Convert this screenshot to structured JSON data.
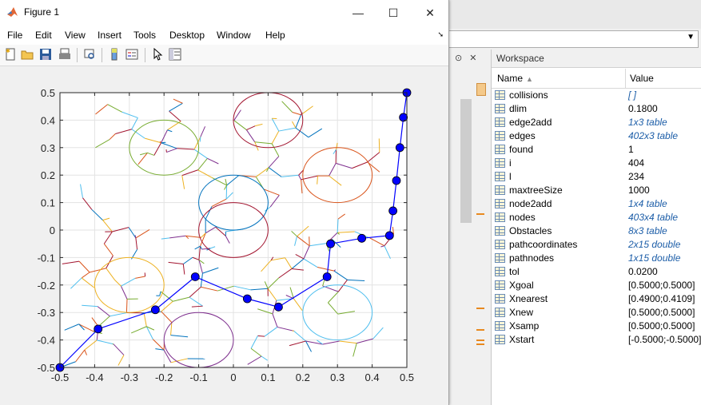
{
  "figure": {
    "title": "Figure 1",
    "menu": [
      "File",
      "Edit",
      "View",
      "Insert",
      "Tools",
      "Desktop",
      "Window",
      "Help"
    ],
    "toolbar_icons": [
      "new-file-icon",
      "open-folder-icon",
      "save-icon",
      "print-icon",
      "print-preview-icon",
      "colorbar-icon",
      "legend-icon",
      "pointer-icon",
      "property-inspector-icon"
    ]
  },
  "workspace": {
    "title": "Workspace",
    "col_name": "Name",
    "col_value": "Value",
    "rows": [
      {
        "name": "collisions",
        "value": "[ ]",
        "italic": true
      },
      {
        "name": "dlim",
        "value": "0.1800",
        "italic": false
      },
      {
        "name": "edge2add",
        "value": "1x3 table",
        "italic": true
      },
      {
        "name": "edges",
        "value": "402x3 table",
        "italic": true
      },
      {
        "name": "found",
        "value": "1",
        "italic": false
      },
      {
        "name": "i",
        "value": "404",
        "italic": false
      },
      {
        "name": "l",
        "value": "234",
        "italic": false
      },
      {
        "name": "maxtreeSize",
        "value": "1000",
        "italic": false
      },
      {
        "name": "node2add",
        "value": "1x4 table",
        "italic": true
      },
      {
        "name": "nodes",
        "value": "403x4 table",
        "italic": true
      },
      {
        "name": "Obstacles",
        "value": "8x3 table",
        "italic": true
      },
      {
        "name": "pathcoordinates",
        "value": "2x15 double",
        "italic": true
      },
      {
        "name": "pathnodes",
        "value": "1x15 double",
        "italic": true
      },
      {
        "name": "tol",
        "value": "0.0200",
        "italic": false
      },
      {
        "name": "Xgoal",
        "value": "[0.5000;0.5000]",
        "italic": false
      },
      {
        "name": "Xnearest",
        "value": "[0.4900;0.4109]",
        "italic": false
      },
      {
        "name": "Xnew",
        "value": "[0.5000;0.5000]",
        "italic": false
      },
      {
        "name": "Xsamp",
        "value": "[0.5000;0.5000]",
        "italic": false
      },
      {
        "name": "Xstart",
        "value": "[-0.5000;-0.5000]",
        "italic": false
      }
    ]
  },
  "chart_data": {
    "type": "scatter",
    "title": "",
    "xlabel": "",
    "ylabel": "",
    "xlim": [
      -0.5,
      0.5
    ],
    "ylim": [
      -0.5,
      0.5
    ],
    "xticks": [
      "-0.5",
      "-0.4",
      "-0.3",
      "-0.2",
      "-0.1",
      "0",
      "0.1",
      "0.2",
      "0.3",
      "0.4",
      "0.5"
    ],
    "yticks": [
      "0.5",
      "0.4",
      "0.3",
      "0.2",
      "0.1",
      "0",
      "-0.1",
      "-0.2",
      "-0.3",
      "-0.4",
      "-0.5"
    ],
    "grid": true,
    "path": {
      "color": "#0000ff",
      "x": [
        -0.5,
        -0.39,
        -0.225,
        -0.11,
        0.04,
        0.13,
        0.27,
        0.28,
        0.37,
        0.45,
        0.46,
        0.47,
        0.48,
        0.49,
        0.5
      ],
      "y": [
        -0.5,
        -0.36,
        -0.29,
        -0.17,
        -0.25,
        -0.28,
        -0.17,
        -0.05,
        -0.03,
        -0.02,
        0.07,
        0.18,
        0.3,
        0.41,
        0.5
      ]
    },
    "obstacles": [
      {
        "cx": -0.2,
        "cy": 0.3,
        "r": 0.1,
        "color": "#77ac30"
      },
      {
        "cx": 0.1,
        "cy": 0.4,
        "r": 0.1,
        "color": "#a2142f"
      },
      {
        "cx": 0.0,
        "cy": 0.1,
        "r": 0.1,
        "color": "#0072bd"
      },
      {
        "cx": 0.0,
        "cy": 0.0,
        "r": 0.1,
        "color": "#a2142f"
      },
      {
        "cx": 0.3,
        "cy": 0.2,
        "r": 0.1,
        "color": "#d95319"
      },
      {
        "cx": -0.3,
        "cy": -0.2,
        "r": 0.1,
        "color": "#edb120"
      },
      {
        "cx": -0.1,
        "cy": -0.4,
        "r": 0.1,
        "color": "#7e2f8e"
      },
      {
        "cx": 0.3,
        "cy": -0.3,
        "r": 0.1,
        "color": "#4dbeee"
      }
    ],
    "tree_colors": [
      "#0072bd",
      "#d95319",
      "#edb120",
      "#7e2f8e",
      "#77ac30",
      "#4dbeee",
      "#a2142f"
    ]
  }
}
